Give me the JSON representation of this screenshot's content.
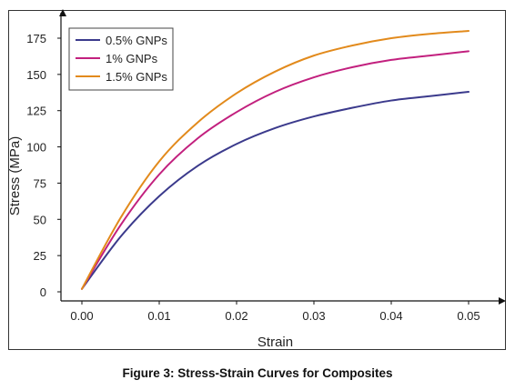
{
  "caption": "Figure 3: Stress-Strain Curves for Composites",
  "chart_data": {
    "type": "line",
    "xlabel": "Strain",
    "ylabel": "Stress (MPa)",
    "xlim": [
      0,
      0.05
    ],
    "ylim": [
      0,
      175
    ],
    "xticks": [
      0.0,
      0.01,
      0.02,
      0.03,
      0.04,
      0.05
    ],
    "xtick_labels": [
      "0.00",
      "0.01",
      "0.02",
      "0.03",
      "0.04",
      "0.05"
    ],
    "yticks": [
      0,
      25,
      50,
      75,
      100,
      125,
      150,
      175
    ],
    "ytick_labels": [
      "0",
      "25",
      "50",
      "75",
      "100",
      "125",
      "150",
      "175"
    ],
    "grid": false,
    "legend_position": "top-left",
    "x": [
      0.0,
      0.005,
      0.01,
      0.015,
      0.02,
      0.025,
      0.03,
      0.035,
      0.04,
      0.045,
      0.05
    ],
    "series": [
      {
        "name": "0.5% GNPs",
        "color": "#3b3a8c",
        "values": [
          2,
          38,
          66,
          87,
          102,
          113,
          121,
          127,
          132,
          135,
          138
        ]
      },
      {
        "name": "1% GNPs",
        "color": "#c2207e",
        "values": [
          2,
          46,
          81,
          106,
          124,
          138,
          148,
          155,
          160,
          163,
          166
        ]
      },
      {
        "name": "1.5% GNPs",
        "color": "#e28a1c",
        "values": [
          2,
          51,
          90,
          117,
          137,
          152,
          163,
          170,
          175,
          178,
          180
        ]
      }
    ]
  }
}
